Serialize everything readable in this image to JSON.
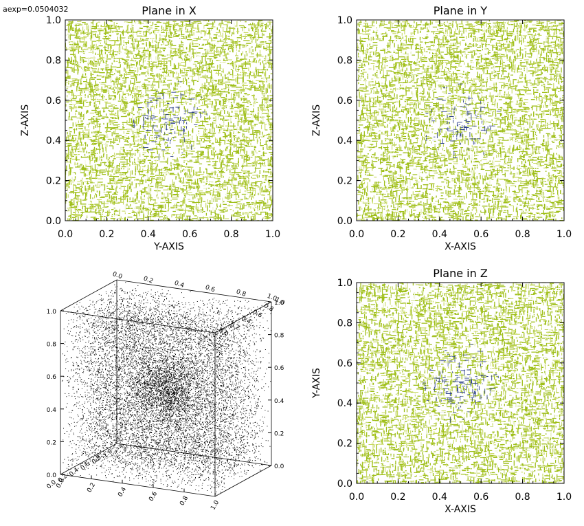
{
  "header": {
    "aexp_text": "aexp=0.0504032"
  },
  "colors": {
    "mesh_primary": "#9fbf1a",
    "mesh_secondary": "#c6d85c",
    "mesh_center": "#2b3f8a",
    "frame": "#000000",
    "points": "#000000"
  },
  "chart_data": [
    {
      "type": "heatmap",
      "title": "Plane in X",
      "xlabel": "Y-AXIS",
      "ylabel": "Z-AXIS",
      "xlim": [
        0.0,
        1.0
      ],
      "ylim": [
        0.0,
        1.0
      ],
      "xticks": [
        "0.0",
        "0.2",
        "0.4",
        "0.6",
        "0.8",
        "1.0"
      ],
      "yticks": [
        "0.0",
        "0.2",
        "0.4",
        "0.6",
        "0.8",
        "1.0"
      ],
      "center": [
        0.5,
        0.5
      ],
      "grid": false
    },
    {
      "type": "heatmap",
      "title": "Plane in Y",
      "xlabel": "X-AXIS",
      "ylabel": "Z-AXIS",
      "xlim": [
        0.0,
        1.0
      ],
      "ylim": [
        0.0,
        1.0
      ],
      "xticks": [
        "0.0",
        "0.2",
        "0.4",
        "0.6",
        "0.8",
        "1.0"
      ],
      "yticks": [
        "0.0",
        "0.2",
        "0.4",
        "0.6",
        "0.8",
        "1.0"
      ],
      "center": [
        0.5,
        0.5
      ],
      "grid": false
    },
    {
      "type": "scatter",
      "title": "",
      "xlabel": "",
      "ylabel": "",
      "xlim": [
        0.0,
        1.0
      ],
      "ylim": [
        0.0,
        1.0
      ],
      "zlim": [
        0.0,
        1.0
      ],
      "xticks": [
        "0.0",
        "0.2",
        "0.4",
        "0.6",
        "0.8",
        "1.0"
      ],
      "yticks": [
        "0.0",
        "0.2",
        "0.4",
        "0.6",
        "0.8",
        "1.0"
      ],
      "zticks": [
        "0.0",
        "0.2",
        "0.4",
        "0.6",
        "0.8",
        "1.0"
      ],
      "distribution": "uniform"
    },
    {
      "type": "heatmap",
      "title": "Plane in Z",
      "xlabel": "X-AXIS",
      "ylabel": "Y-AXIS",
      "xlim": [
        0.0,
        1.0
      ],
      "ylim": [
        0.0,
        1.0
      ],
      "xticks": [
        "0.0",
        "0.2",
        "0.4",
        "0.6",
        "0.8",
        "1.0"
      ],
      "yticks": [
        "0.0",
        "0.2",
        "0.4",
        "0.6",
        "0.8",
        "1.0"
      ],
      "center": [
        0.5,
        0.5
      ],
      "grid": false
    }
  ]
}
